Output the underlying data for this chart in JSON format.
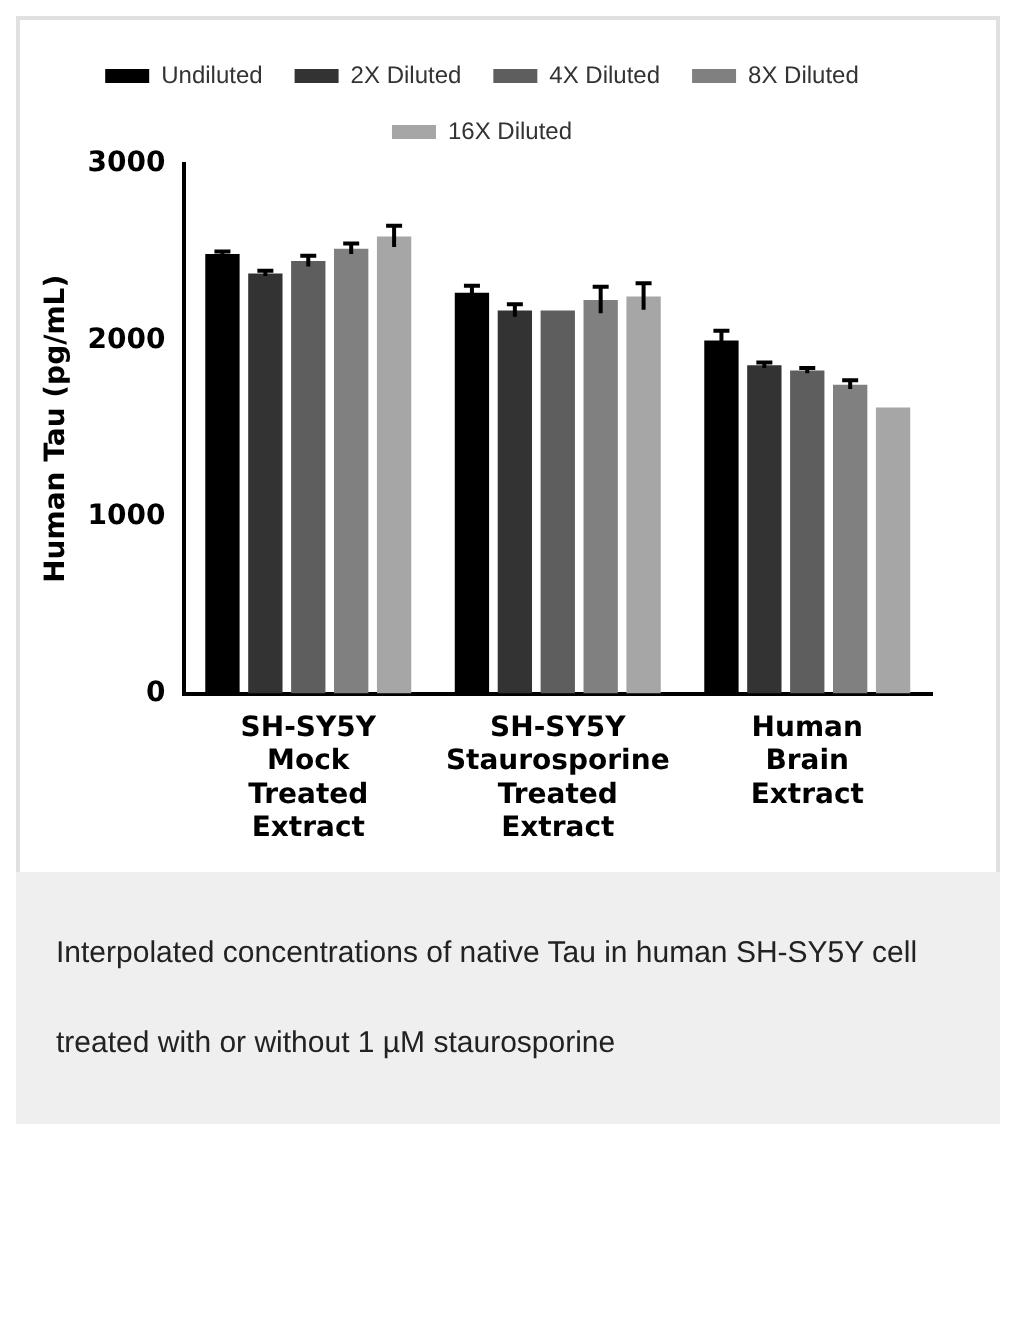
{
  "chart_data": {
    "type": "bar",
    "ylabel": "Human Tau (pg/mL)",
    "categories": [
      "SH-SY5Y\nMock\nTreated\nExtract",
      "SH-SY5Y\nStaurosporine\nTreated\nExtract",
      "Human\nBrain\nExtract"
    ],
    "series": [
      {
        "name": "Undiluted",
        "color": "#000000",
        "values": [
          2490,
          2270,
          2000
        ],
        "errors": [
          15,
          40,
          55
        ]
      },
      {
        "name": "2X Diluted",
        "color": "#333333",
        "values": [
          2380,
          2170,
          1860
        ],
        "errors": [
          15,
          35,
          15
        ]
      },
      {
        "name": "4X Diluted",
        "color": "#5e5e5e",
        "values": [
          2450,
          2170,
          1830
        ],
        "errors": [
          30,
          null,
          15
        ]
      },
      {
        "name": "8X Diluted",
        "color": "#808080",
        "values": [
          2520,
          2230,
          1750
        ],
        "errors": [
          30,
          75,
          25
        ]
      },
      {
        "name": "16X Diluted",
        "color": "#a6a6a6",
        "values": [
          2590,
          2250,
          1620
        ],
        "errors": [
          60,
          75,
          null
        ]
      }
    ],
    "ylim": [
      0,
      3000
    ],
    "yticks": [
      0,
      1000,
      2000,
      3000
    ],
    "grid": false,
    "legend": "top",
    "annotations": [
      "Interpolated concentrations of native Tau in human SH-SY5Y cell treated with or without 1 µM staurosporine"
    ]
  }
}
